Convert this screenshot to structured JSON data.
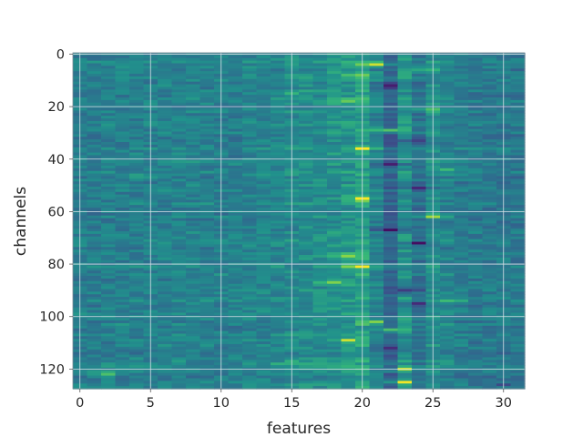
{
  "chart_data": {
    "type": "heatmap",
    "xlabel": "features",
    "ylabel": "channels",
    "cols": 32,
    "rows": 128,
    "xlim": [
      -0.5,
      31.5
    ],
    "ylim": [
      127.5,
      -0.5
    ],
    "x_ticks": [
      0,
      5,
      10,
      15,
      20,
      25,
      30
    ],
    "y_ticks": [
      0,
      20,
      40,
      60,
      80,
      100,
      120
    ],
    "x_tick_labels": [
      "0",
      "5",
      "10",
      "15",
      "20",
      "25",
      "30"
    ],
    "y_tick_labels": [
      "0",
      "20",
      "40",
      "60",
      "80",
      "100",
      "120"
    ],
    "grid": true,
    "colormap": "viridis",
    "colors": {
      "low": "#30185a",
      "mid_low": "#3b4f8c",
      "mid": "#2a788e",
      "mid_high": "#2fb47c",
      "high": "#dde318",
      "grid": "#d9e1e8"
    },
    "column_profile": [
      -0.1,
      -0.12,
      -0.08,
      -0.09,
      -0.08,
      -0.1,
      -0.07,
      -0.05,
      -0.06,
      -0.08,
      -0.09,
      -0.08,
      -0.04,
      -0.03,
      -0.02,
      0.03,
      0.05,
      0.06,
      0.08,
      0.15,
      0.25,
      -0.05,
      -0.4,
      0.1,
      -0.25,
      0.05,
      -0.05,
      -0.12,
      -0.15,
      -0.15,
      -0.16,
      -0.18
    ],
    "hot_spots": [
      {
        "row": 4,
        "col": 21,
        "value": 0.95
      },
      {
        "row": 6,
        "col": 24,
        "value": 0.6
      },
      {
        "row": 8,
        "col": 19,
        "value": 0.5
      },
      {
        "row": 15,
        "col": 15,
        "value": 0.5
      },
      {
        "row": 18,
        "col": 19,
        "value": 0.6
      },
      {
        "row": 21,
        "col": 25,
        "value": 0.6
      },
      {
        "row": 29,
        "col": 22,
        "value": 0.85
      },
      {
        "row": 36,
        "col": 20,
        "value": 0.6
      },
      {
        "row": 44,
        "col": 26,
        "value": 0.55
      },
      {
        "row": 47,
        "col": 4,
        "value": 0.55
      },
      {
        "row": 55,
        "col": 20,
        "value": 0.95
      },
      {
        "row": 62,
        "col": 25,
        "value": 0.6
      },
      {
        "row": 77,
        "col": 19,
        "value": 0.7
      },
      {
        "row": 81,
        "col": 20,
        "value": 0.9
      },
      {
        "row": 87,
        "col": 18,
        "value": 0.5
      },
      {
        "row": 94,
        "col": 26,
        "value": 0.6
      },
      {
        "row": 102,
        "col": 21,
        "value": 0.7
      },
      {
        "row": 105,
        "col": 22,
        "value": 0.85
      },
      {
        "row": 109,
        "col": 19,
        "value": 0.7
      },
      {
        "row": 118,
        "col": 15,
        "value": 0.5
      },
      {
        "row": 120,
        "col": 23,
        "value": 0.8
      },
      {
        "row": 122,
        "col": 2,
        "value": 0.5
      },
      {
        "row": 125,
        "col": 23,
        "value": 0.9
      }
    ],
    "dark_spots": [
      {
        "row": 12,
        "col": 22,
        "value": -0.8
      },
      {
        "row": 33,
        "col": 23,
        "value": -0.75
      },
      {
        "row": 42,
        "col": 22,
        "value": -0.8
      },
      {
        "row": 51,
        "col": 24,
        "value": -0.7
      },
      {
        "row": 67,
        "col": 22,
        "value": -0.75
      },
      {
        "row": 72,
        "col": 24,
        "value": -0.8
      },
      {
        "row": 90,
        "col": 23,
        "value": -0.85
      },
      {
        "row": 95,
        "col": 24,
        "value": -0.75
      },
      {
        "row": 112,
        "col": 22,
        "value": -0.7
      },
      {
        "row": 126,
        "col": 30,
        "value": -0.5
      }
    ],
    "value_range": [
      -1,
      1
    ]
  }
}
